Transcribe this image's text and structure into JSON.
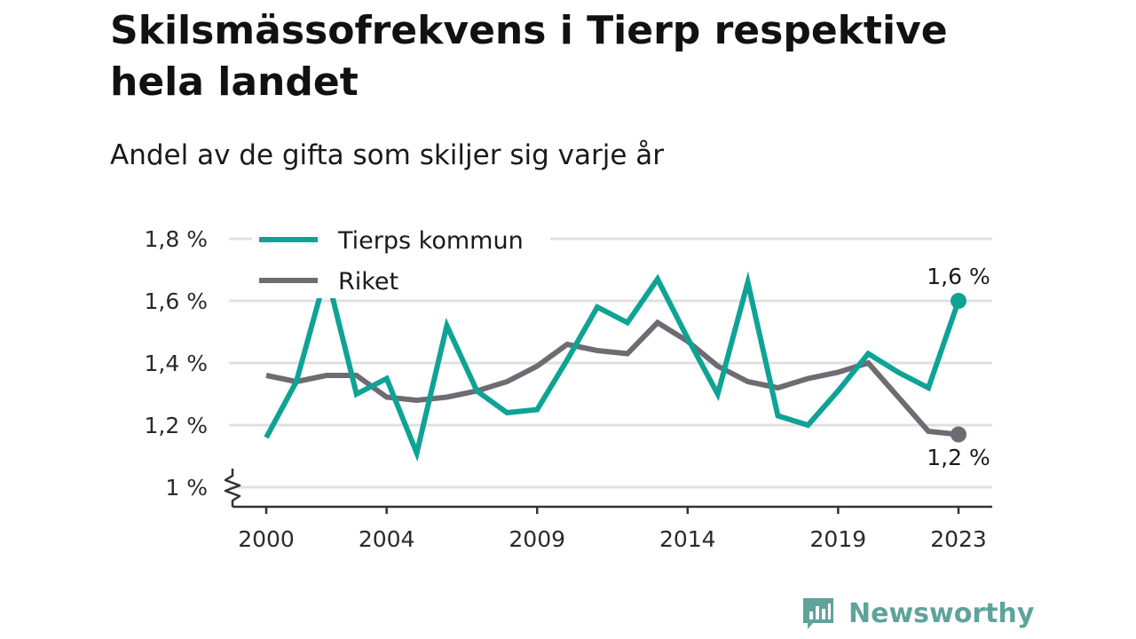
{
  "header": {
    "title": "Skilsmässofrekvens i Tierp respektive hela landet",
    "subtitle": "Andel av de gifta som skiljer sig varje år"
  },
  "brand": {
    "name": "Newsworthy",
    "logo_icon": "newsworthy-logo-icon",
    "color": "#5fa39b"
  },
  "chart_data": {
    "type": "line",
    "title": "Skilsmässofrekvens i Tierp respektive hela landet",
    "subtitle": "Andel av de gifta som skiljer sig varje år",
    "xlabel": "",
    "ylabel": "",
    "x": [
      2000,
      2001,
      2002,
      2003,
      2004,
      2005,
      2006,
      2007,
      2008,
      2009,
      2010,
      2011,
      2012,
      2013,
      2014,
      2015,
      2016,
      2017,
      2018,
      2019,
      2020,
      2021,
      2022,
      2023
    ],
    "x_tick_labels": [
      "2000",
      "2004",
      "2009",
      "2014",
      "2019",
      "2023"
    ],
    "x_tick_values": [
      2000,
      2004,
      2009,
      2014,
      2019,
      2023
    ],
    "y_tick_labels": [
      "1 %",
      "1,2 %",
      "1,4 %",
      "1,6 %",
      "1,8 %"
    ],
    "y_tick_values": [
      1.0,
      1.2,
      1.4,
      1.6,
      1.8
    ],
    "ylim": [
      0.95,
      1.8
    ],
    "y_axis_break": true,
    "grid": true,
    "legend_position": "top-left",
    "series": [
      {
        "name": "Tierps kommun",
        "color": "#0fa396",
        "values": [
          1.16,
          1.34,
          1.69,
          1.3,
          1.35,
          1.11,
          1.52,
          1.31,
          1.24,
          1.25,
          1.41,
          1.58,
          1.53,
          1.67,
          1.48,
          1.3,
          1.66,
          1.23,
          1.2,
          1.31,
          1.43,
          1.37,
          1.32,
          1.6
        ],
        "end_label": "1,6 %"
      },
      {
        "name": "Riket",
        "color": "#6e6c72",
        "values": [
          1.36,
          1.34,
          1.36,
          1.36,
          1.29,
          1.28,
          1.29,
          1.31,
          1.34,
          1.39,
          1.46,
          1.44,
          1.43,
          1.53,
          1.47,
          1.39,
          1.34,
          1.32,
          1.35,
          1.37,
          1.4,
          1.29,
          1.18,
          1.17
        ],
        "end_label": "1,2 %"
      }
    ]
  }
}
